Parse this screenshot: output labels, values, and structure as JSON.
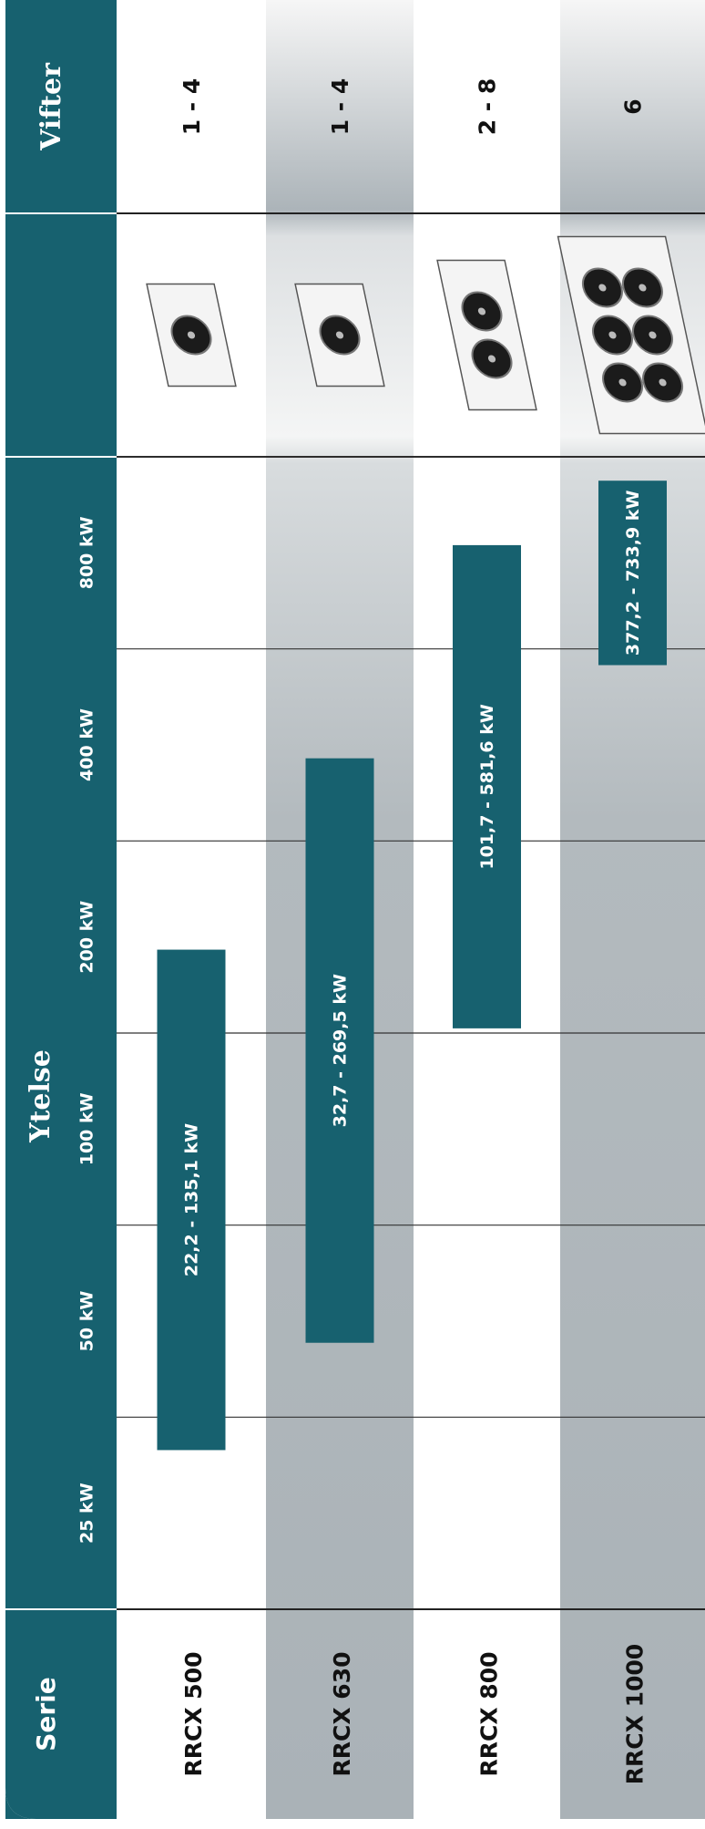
{
  "table": {
    "serie_header": "Serie",
    "fan_header": "Vifter",
    "fans": [
      "1 - 4",
      "1 - 4",
      "2 - 8",
      "6"
    ]
  },
  "chart_data": {
    "type": "range_bar",
    "title": "Ytelse",
    "categories": [
      "RRCX 500",
      "RRCX 630",
      "RRCX 800",
      "RRCX 1000"
    ],
    "values": [
      [
        22.2,
        135.1
      ],
      [
        32.7,
        269.5
      ],
      [
        101.7,
        581.6
      ],
      [
        377.2,
        733.9
      ]
    ],
    "value_labels": [
      "22,2 - 135,1 kW",
      "32,7 - 269,5 kW",
      "101,7 - 581,6 kW",
      "377,2 - 733,9 kW"
    ],
    "color": "#17616f",
    "log_scale": true,
    "grid": true,
    "xlim": [
      12.5,
      800
    ],
    "xticks": [
      {
        "value": 25,
        "label": "25 kW"
      },
      {
        "value": 50,
        "label": "50 kW"
      },
      {
        "value": 100,
        "label": "100 kW"
      },
      {
        "value": 200,
        "label": "200 kW"
      },
      {
        "value": 400,
        "label": "400 kW"
      },
      {
        "value": 800,
        "label": "800 kW"
      }
    ]
  }
}
